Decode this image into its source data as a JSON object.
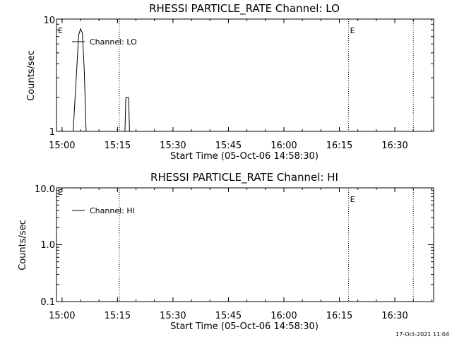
{
  "chart_data": [
    {
      "type": "line",
      "title": "RHESSI PARTICLE_RATE Channel: LO",
      "xlabel": "Start Time (05-Oct-06 14:58:30)",
      "ylabel": "Counts/sec",
      "yscale": "log",
      "ylim": [
        1,
        10
      ],
      "ytick_labels": [
        "10",
        "1"
      ],
      "xlim": [
        "14:58:30",
        "16:40:30"
      ],
      "xtick_labels": [
        "15:00",
        "15:15",
        "15:30",
        "15:45",
        "16:00",
        "16:15",
        "16:30"
      ],
      "legend": "top-left",
      "series": [
        {
          "name": "Channel: LO",
          "points": [
            [
              "15:03:00",
              1
            ],
            [
              "15:04:30",
              7.2
            ],
            [
              "15:05:00",
              8.2
            ],
            [
              "15:05:30",
              7.5
            ],
            [
              "15:06:00",
              3.5
            ],
            [
              "15:06:30",
              1
            ],
            [
              "15:17:00",
              1
            ],
            [
              "15:17:15",
              2
            ],
            [
              "15:18:00",
              2
            ],
            [
              "15:18:15",
              1
            ]
          ]
        }
      ],
      "vlines": [
        {
          "x": "15:15:30",
          "label": ""
        },
        {
          "x": "16:17:30",
          "label": "E"
        },
        {
          "x": "16:35:00",
          "label": ""
        }
      ],
      "corner_label": "E"
    },
    {
      "type": "line",
      "title": "RHESSI PARTICLE_RATE Channel: HI",
      "xlabel": "Start Time (05-Oct-06 14:58:30)",
      "ylabel": "Counts/sec",
      "yscale": "log",
      "ylim": [
        0.1,
        10
      ],
      "ytick_labels": [
        "10.0",
        "1.0",
        "0.1"
      ],
      "xlim": [
        "14:58:30",
        "16:40:30"
      ],
      "xtick_labels": [
        "15:00",
        "15:15",
        "15:30",
        "15:45",
        "16:00",
        "16:15",
        "16:30"
      ],
      "legend": "top-left",
      "series": [
        {
          "name": "Channel: HI",
          "points": []
        }
      ],
      "vlines": [
        {
          "x": "15:15:30",
          "label": ""
        },
        {
          "x": "16:17:30",
          "label": "E"
        },
        {
          "x": "16:35:00",
          "label": ""
        }
      ],
      "corner_label": "E"
    }
  ],
  "timestamp": "17-Oct-2021 11:04"
}
